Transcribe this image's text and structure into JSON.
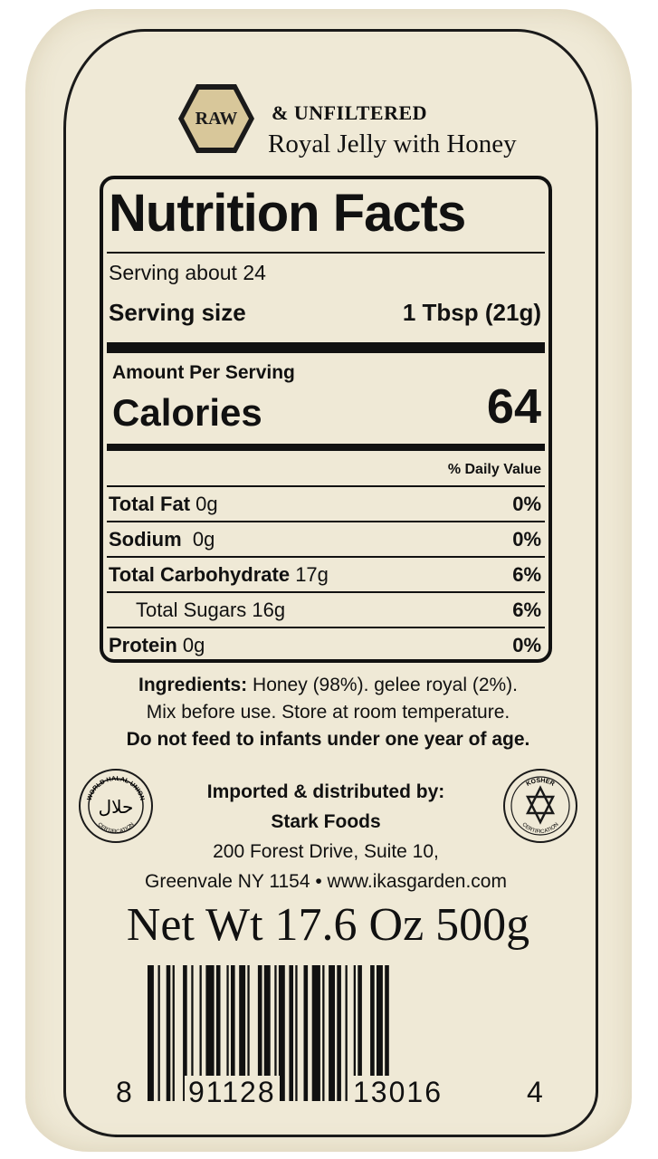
{
  "brand": {
    "raw_badge": "RAW",
    "unfiltered": "& UNFILTERED",
    "subtitle": "Royal Jelly with Honey",
    "badge_color": "#d8c79a"
  },
  "nutrition": {
    "title": "Nutrition Facts",
    "servings": "Serving about 24",
    "serving_size_label": "Serving size",
    "serving_size_value": "1 Tbsp (21g)",
    "amount_per_serving": "Amount Per Serving",
    "calories_label": "Calories",
    "calories_value": "64",
    "daily_value_header": "% Daily Value",
    "rows": [
      {
        "name": "Total Fat",
        "amount": "0g",
        "pct": "0%"
      },
      {
        "name": "Sodium",
        "amount": "0g",
        "pct": "0%"
      },
      {
        "name": "Total Carbohydrate",
        "amount": "17g",
        "pct": "6%"
      },
      {
        "name": "Total Sugars",
        "amount": "16g",
        "pct": "6%"
      },
      {
        "name": "Protein",
        "amount": "0g",
        "pct": "0%"
      }
    ]
  },
  "ingredients": {
    "label": "Ingredients:",
    "text": "Honey (98%). gelee royal (2%).",
    "instructions": "Mix before use. Store at room temperature.",
    "warning": "Do not feed to infants under one year of age."
  },
  "importer": {
    "heading": "Imported & distributed by:",
    "company": "Stark Foods",
    "address": "200 Forest Drive, Suite 10,",
    "city_web": "Greenvale NY 1154 • www.ikasgarden.com"
  },
  "seals": {
    "halal_text": "WORLD HALAL UNION",
    "halal_cert": "CERTIFICATION",
    "halal_glyph": "حلال",
    "kosher_text": "KOSHER",
    "kosher_cert": "CERTIFICATION"
  },
  "net_weight": "Net Wt 17.6 Oz 500g",
  "barcode": {
    "first": "8",
    "left_group": "91128",
    "right_group": "13016",
    "check": "4"
  }
}
